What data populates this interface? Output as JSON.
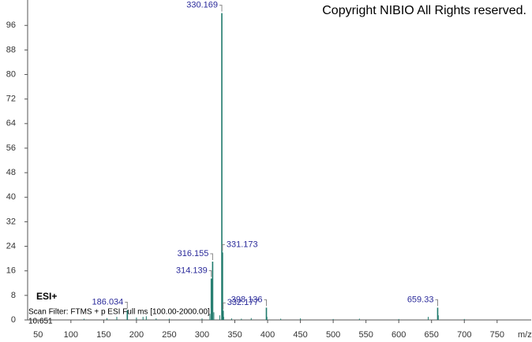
{
  "chart_data": {
    "type": "stem",
    "title": "Copyright NIBIO All Rights reserved.",
    "annotations": [
      "ESI+",
      "Scan Filter: FTMS + p ESI Full ms [100.00-2000.00]",
      "10.651"
    ],
    "xlabel": "m/z",
    "color": "#1f7a6c",
    "label_color": "#2a2a9a",
    "x": [
      186.034,
      314.139,
      316.155,
      330.169,
      331.173,
      332.177,
      398.136,
      659.33
    ],
    "values": [
      3.2,
      13.5,
      19,
      100,
      22,
      3,
      4,
      4
    ],
    "minor_peaks": {
      "x": [
        120,
        155,
        170,
        200,
        210,
        215,
        230,
        250,
        300,
        312,
        318,
        327,
        333,
        345,
        360,
        375,
        399,
        420,
        450,
        500,
        540,
        600,
        645,
        660.33,
        700
      ],
      "values": [
        0.4,
        0.6,
        1,
        0.8,
        1,
        1.2,
        0.5,
        0.4,
        0.5,
        2,
        2.5,
        1.5,
        1,
        0.5,
        0.4,
        0.6,
        1,
        0.4,
        0.5,
        0.3,
        0.4,
        0.3,
        1,
        1.5,
        0.3
      ]
    },
    "xlim": [
      34,
      802
    ],
    "ylim": [
      0,
      103
    ],
    "xticks": [
      50,
      100,
      150,
      200,
      250,
      300,
      350,
      400,
      450,
      500,
      550,
      600,
      650,
      700,
      750
    ],
    "yticks": [
      0,
      8,
      16,
      24,
      32,
      40,
      48,
      56,
      64,
      72,
      80,
      88,
      96
    ]
  }
}
